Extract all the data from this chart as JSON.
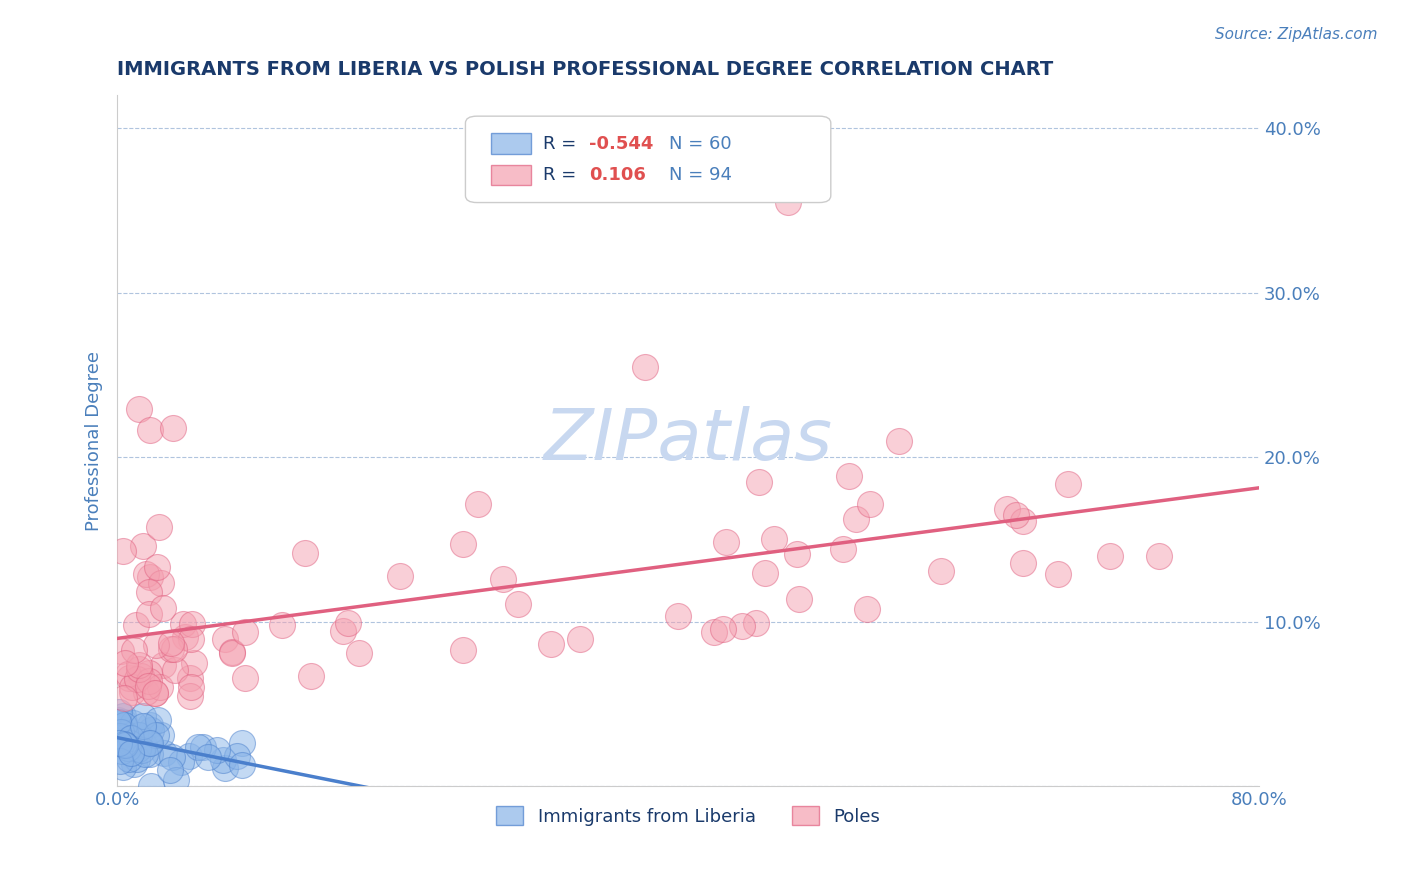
{
  "title": "IMMIGRANTS FROM LIBERIA VS POLISH PROFESSIONAL DEGREE CORRELATION CHART",
  "source_text": "Source: ZipAtlas.com",
  "xlabel": "",
  "ylabel": "Professional Degree",
  "xlim": [
    0.0,
    0.8
  ],
  "ylim": [
    0.0,
    0.42
  ],
  "xticks": [
    0.0,
    0.2,
    0.4,
    0.6,
    0.8
  ],
  "xtick_labels": [
    "0.0%",
    "",
    "",
    "",
    "80.0%"
  ],
  "yticks": [
    0.0,
    0.1,
    0.2,
    0.3,
    0.4
  ],
  "ytick_labels": [
    "",
    "10.0%",
    "20.0%",
    "30.0%",
    "40.0%"
  ],
  "blue_R": -0.544,
  "blue_N": 60,
  "pink_R": 0.106,
  "pink_N": 94,
  "blue_color": "#89b4e8",
  "pink_color": "#f4a0b0",
  "blue_line_color": "#4a7fcc",
  "pink_line_color": "#e06080",
  "title_color": "#1a3a6b",
  "axis_color": "#4a7fbb",
  "grid_color": "#b0c4de",
  "watermark_color": "#c8d8f0",
  "legend_blue_label": "Immigrants from Liberia",
  "legend_pink_label": "Poles",
  "blue_seed": 42,
  "pink_seed": 123
}
